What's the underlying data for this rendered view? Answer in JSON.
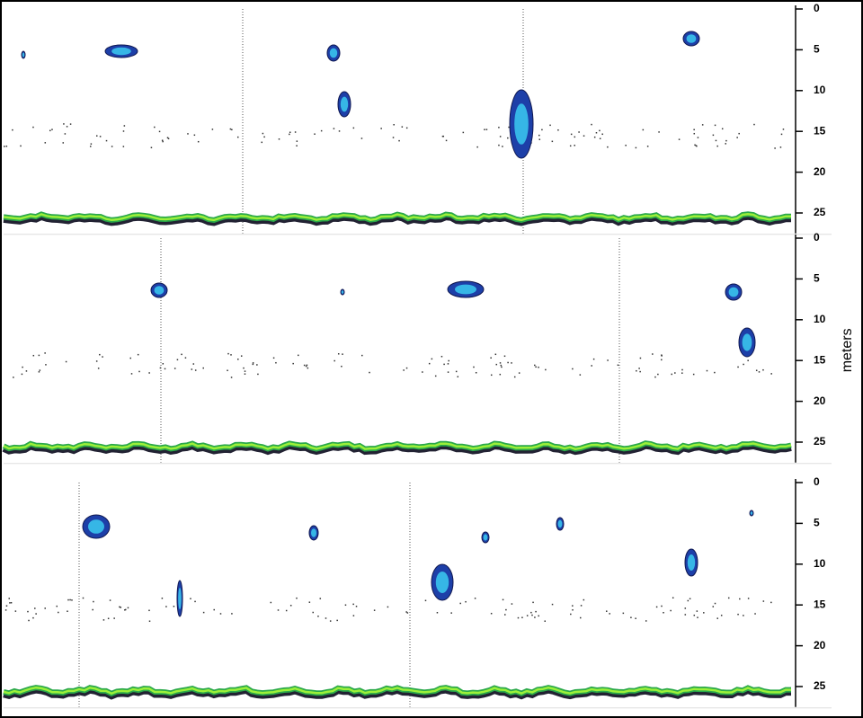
{
  "chart_data": [
    {
      "type": "echogram",
      "ylim": [
        0,
        27.5
      ],
      "yticks": [
        0,
        5,
        10,
        15,
        20,
        25
      ]
    },
    {
      "type": "echogram",
      "ylim": [
        0,
        27.5
      ],
      "yticks": [
        0,
        5,
        10,
        15,
        20,
        25
      ],
      "ylabel": "meters"
    },
    {
      "type": "echogram",
      "ylim": [
        0,
        27.5
      ],
      "yticks": [
        0,
        5,
        10,
        15,
        20,
        25
      ]
    }
  ]
}
